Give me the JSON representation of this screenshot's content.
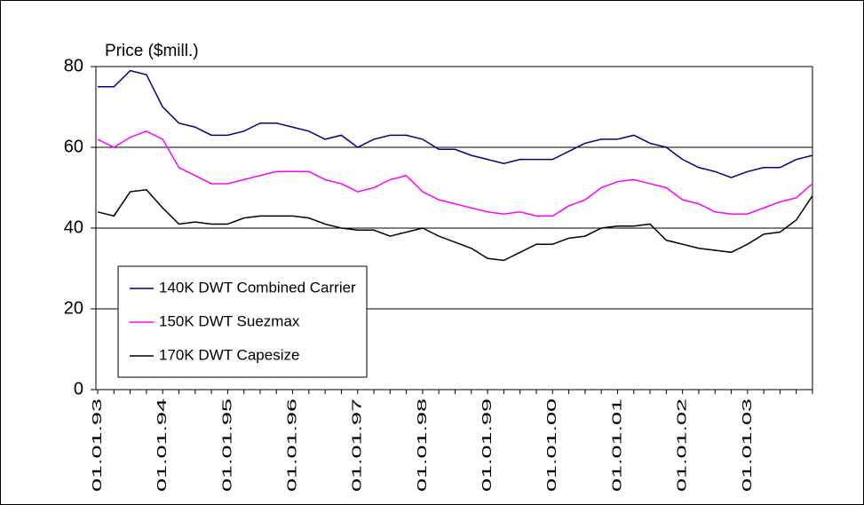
{
  "chart_data": {
    "type": "line",
    "y_axis_label": "Price ($mill.)",
    "categories": [
      "01.01.93",
      null,
      null,
      null,
      "01.01.94",
      null,
      null,
      null,
      "01.01.95",
      null,
      null,
      null,
      "01.01.96",
      null,
      null,
      null,
      "01.01.97",
      null,
      null,
      null,
      "01.01.98",
      null,
      null,
      null,
      "01.01.99",
      null,
      null,
      null,
      "01.01.00",
      null,
      null,
      null,
      "01.01.01",
      null,
      null,
      null,
      "01.01.02",
      null,
      null,
      null,
      "01.01.03",
      null,
      null,
      null,
      null
    ],
    "series": [
      {
        "name": "140K DWT Combined Carrier",
        "color": "#000080",
        "values": [
          75,
          75,
          79,
          78,
          70,
          66,
          65,
          63,
          63,
          64,
          66,
          66,
          65,
          64,
          62,
          63,
          60,
          62,
          63,
          63,
          62,
          59.5,
          59.5,
          58,
          57,
          56,
          57,
          57,
          57,
          59,
          61,
          62,
          62,
          63,
          61,
          60,
          57,
          55,
          54,
          52.5,
          54,
          55,
          55,
          57,
          58
        ]
      },
      {
        "name": "150K DWT Suezmax",
        "color": "#ff00ff",
        "values": [
          62,
          60,
          62.5,
          64,
          62,
          55,
          53,
          51,
          51,
          52,
          53,
          54,
          54,
          54,
          52,
          51,
          49,
          50,
          52,
          53,
          49,
          47,
          46,
          45,
          44,
          43.5,
          44,
          43,
          43,
          45.5,
          47,
          50,
          51.5,
          52,
          51,
          50,
          47,
          46,
          44,
          43.5,
          43.5,
          45,
          46.5,
          47.5,
          51
        ]
      },
      {
        "name": "170K DWT Capesize",
        "color": "#000000",
        "values": [
          44,
          43,
          49,
          49.5,
          45,
          41,
          41.5,
          41,
          41,
          42.5,
          43,
          43,
          43,
          42.5,
          41,
          40,
          39.5,
          39.5,
          38,
          39,
          40,
          38,
          36.5,
          35,
          32.5,
          32,
          34,
          36,
          36,
          37.5,
          38,
          40,
          40.5,
          40.5,
          41,
          37,
          36,
          35,
          34.5,
          34,
          36,
          38.5,
          39,
          42,
          48
        ]
      }
    ],
    "ylim": [
      0,
      80
    ],
    "yticks": [
      0,
      20,
      40,
      60,
      80
    ],
    "grid": true,
    "legend": "lower left"
  }
}
